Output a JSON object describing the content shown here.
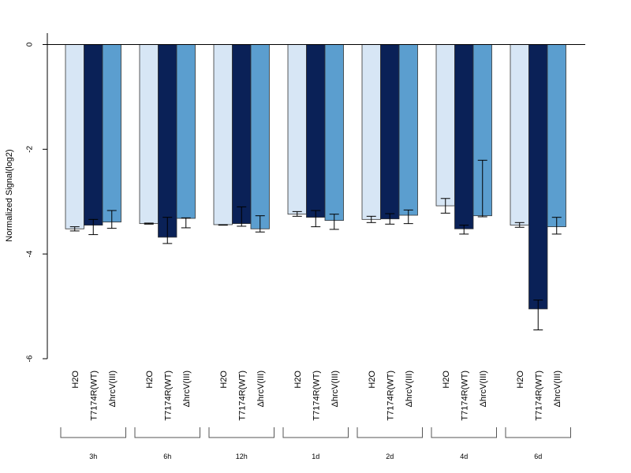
{
  "chart_data": {
    "type": "bar",
    "ylabel": "Normalized Signal(log2)",
    "xlabel": "",
    "ylim": [
      -6,
      0.2
    ],
    "yticks": [
      0,
      -2,
      -4,
      -6
    ],
    "ytick_labels": [
      "0",
      "-2",
      "-4",
      "-6"
    ],
    "categories": [
      "3h",
      "6h",
      "12h",
      "1d",
      "2d",
      "4d",
      "6d"
    ],
    "bar_labels": [
      "H2O",
      "T7174R(WT)",
      "ΔhrcV(III)"
    ],
    "series": [
      {
        "name": "H2O",
        "color": "#d7e6f5",
        "values": [
          -3.52,
          -3.42,
          -3.44,
          -3.24,
          -3.34,
          -3.08,
          -3.45
        ],
        "err_low": [
          -3.56,
          -3.43,
          -3.45,
          -3.28,
          -3.4,
          -3.22,
          -3.49
        ],
        "err_high": [
          -3.48,
          -3.41,
          -3.44,
          -3.19,
          -3.28,
          -2.94,
          -3.4
        ]
      },
      {
        "name": "T7174R(WT)",
        "color": "#0a2157",
        "values": [
          -3.45,
          -3.68,
          -3.42,
          -3.3,
          -3.33,
          -3.52,
          -5.05
        ],
        "err_low": [
          -3.63,
          -3.8,
          -3.47,
          -3.48,
          -3.43,
          -3.62,
          -5.45
        ],
        "err_high": [
          -3.34,
          -3.3,
          -3.1,
          -3.17,
          -3.23,
          -3.45,
          -4.88
        ]
      },
      {
        "name": "ΔhrcV(III)",
        "color": "#5b9ecf",
        "values": [
          -3.39,
          -3.32,
          -3.52,
          -3.36,
          -3.26,
          -3.27,
          -3.48
        ],
        "err_low": [
          -3.51,
          -3.5,
          -3.58,
          -3.53,
          -3.42,
          -3.29,
          -3.62
        ],
        "err_high": [
          -3.17,
          -3.31,
          -3.27,
          -3.24,
          -3.16,
          -2.21,
          -3.3
        ]
      }
    ]
  }
}
